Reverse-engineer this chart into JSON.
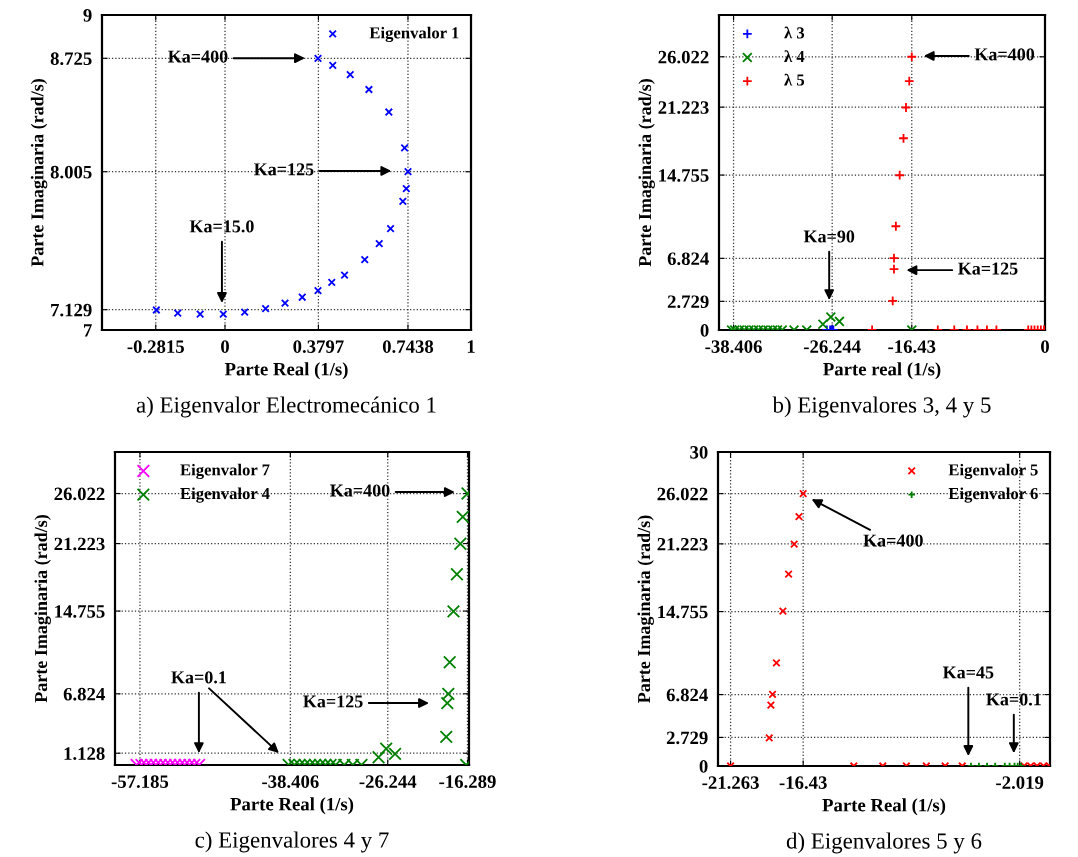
{
  "chart_data": [
    {
      "type": "scatter",
      "title": "a) Eigenvalor Electromecánico 1",
      "xlabel": "Parte Real (1/s)",
      "ylabel": "Parte Imaginaria (rad/s)",
      "xlim": [
        -0.5,
        1
      ],
      "ylim": [
        7,
        9
      ],
      "xticks": [
        -0.2815,
        0,
        0.3797,
        0.7438,
        1
      ],
      "yticks": [
        7,
        7.129,
        8.005,
        8.725,
        9
      ],
      "grid": true,
      "legend": "top right",
      "series": [
        {
          "name": "Eigenvalor 1",
          "color": "#0000ff",
          "marker": "cross",
          "x": [
            0.378,
            0.438,
            0.509,
            0.585,
            0.666,
            0.73,
            0.744,
            0.737,
            0.723,
            0.673,
            0.627,
            0.568,
            0.486,
            0.434,
            0.378,
            0.314,
            0.244,
            0.165,
            0.08,
            -0.007,
            -0.101,
            -0.192,
            -0.279
          ],
          "values": [
            8.725,
            8.68,
            8.621,
            8.527,
            8.384,
            8.157,
            8.005,
            7.898,
            7.817,
            7.644,
            7.548,
            7.447,
            7.348,
            7.302,
            7.25,
            7.208,
            7.171,
            7.136,
            7.114,
            7.101,
            7.101,
            7.107,
            7.127
          ]
        }
      ],
      "annotations": [
        "Ka=400",
        "Ka=125",
        "Ka=15.0"
      ]
    },
    {
      "type": "scatter",
      "title": "b) Eigenvalores 3, 4 y 5",
      "xlabel": "Parte real (1/s)",
      "ylabel": "Parte Imaginaria (rad/s)",
      "xlim": [
        -40.2,
        0
      ],
      "ylim": [
        0,
        30
      ],
      "xticks": [
        -38.406,
        -26.244,
        -16.43,
        0
      ],
      "yticks": [
        0,
        2.729,
        6.824,
        14.755,
        21.223,
        26.022
      ],
      "grid": true,
      "legend": "top left",
      "series": [
        {
          "name": "λ 3",
          "color": "#0000ff",
          "marker": "plus",
          "x": [
            -26.9,
            -26.5,
            -26.29,
            -26.1
          ],
          "values": [
            0,
            0,
            0,
            0
          ]
        },
        {
          "name": "λ 4",
          "color": "#008000",
          "marker": "cross",
          "x": [
            -38.65,
            -38.26,
            -37.68,
            -37.09,
            -36.5,
            -35.92,
            -35.33,
            -34.74,
            -34.16,
            -33.57,
            -32.99,
            -32.4,
            -30.95,
            -29.38,
            -27.39,
            -26.41,
            -25.35,
            -16.43
          ],
          "values": [
            0,
            0,
            0,
            0,
            0,
            0,
            0,
            0,
            0,
            0,
            0,
            0,
            0,
            0,
            0.55,
            1.24,
            0.82,
            0
          ]
        },
        {
          "name": "λ 5",
          "color": "#ff0000",
          "marker": "plus",
          "x": [
            -16.43,
            -16.74,
            -17.14,
            -17.45,
            -17.92,
            -18.39,
            -18.62,
            -18.62,
            -18.78,
            -21.32,
            -13.22,
            -11.19,
            -9.62,
            -8.33,
            -7.16,
            -5.99,
            -2.07,
            -1.68,
            -1.29,
            -0.9,
            -0.51,
            -0.12
          ],
          "values": [
            26.022,
            23.7,
            21.19,
            18.26,
            14.74,
            9.88,
            6.85,
            5.8,
            2.77,
            0,
            0,
            0,
            0,
            0,
            0,
            0,
            0,
            0,
            0,
            0,
            0,
            0
          ]
        }
      ],
      "annotations": [
        "Ka=400",
        "Ka=90",
        "Ka=125"
      ]
    },
    {
      "type": "scatter",
      "title": "c) Eigenvalores 4 y 7",
      "xlabel": "Parte Real (1/s)",
      "ylabel": "Parte Imaginaria (rad/s)",
      "xlim": [
        -60.3,
        -16.1
      ],
      "ylim": [
        0,
        30
      ],
      "xticks": [
        -57.185,
        -38.406,
        -26.244,
        -16.289
      ],
      "yticks": [
        1.128,
        6.824,
        14.755,
        21.223,
        26.022
      ],
      "grid": true,
      "legend": "top left",
      "series": [
        {
          "name": "Eigenvalor 7",
          "color": "#ff00ff",
          "marker": "cross",
          "x": [
            -57.6,
            -57.0,
            -56.4,
            -55.8,
            -55.2,
            -54.6,
            -54.0,
            -53.4,
            -52.8,
            -52.2,
            -51.6,
            -51.0,
            -50.4,
            -49.8
          ],
          "values": [
            0,
            0,
            0,
            0,
            0,
            0,
            0,
            0,
            0,
            0,
            0,
            0,
            0,
            0
          ]
        },
        {
          "name": "Eigenvalor 4",
          "color": "#008000",
          "marker": "cross",
          "x": [
            -38.62,
            -37.89,
            -37.25,
            -36.61,
            -35.96,
            -35.32,
            -34.68,
            -34.04,
            -33.39,
            -32.75,
            -31.67,
            -30.6,
            -29.53,
            -27.39,
            -26.44,
            -25.33,
            -18.94,
            -18.81,
            -18.68,
            -18.51,
            -18.04,
            -17.61,
            -17.18,
            -16.88,
            -16.289,
            -16.45
          ],
          "values": [
            0,
            0,
            0,
            0,
            0,
            0,
            0,
            0,
            0,
            0,
            0,
            0,
            0,
            0.74,
            1.56,
            1.07,
            2.7,
            5.93,
            6.82,
            9.85,
            14.72,
            18.28,
            21.21,
            23.78,
            26.022,
            0
          ]
        }
      ],
      "annotations": [
        "Ka=400",
        "Ka=125",
        "Ka=0.1"
      ]
    },
    {
      "type": "scatter",
      "title": "d) Eigenvalores 5 y 6",
      "xlabel": "Parte Real (1/s)",
      "ylabel": "Parte Imaginaria (rad/s)",
      "xlim": [
        -22.1,
        0
      ],
      "ylim": [
        0,
        30
      ],
      "xticks": [
        -21.263,
        -16.43,
        -2.019
      ],
      "yticks": [
        0,
        2.729,
        6.824,
        14.755,
        21.223,
        26.022,
        30
      ],
      "grid": true,
      "legend": "top right",
      "series": [
        {
          "name": "Eigenvalor 5",
          "color": "#ff0000",
          "marker": "cross",
          "x": [
            -16.43,
            -16.71,
            -17.03,
            -17.4,
            -17.78,
            -18.21,
            -18.47,
            -18.58,
            -18.69,
            -21.263,
            -13.06,
            -11.13,
            -9.56,
            -8.23,
            -6.98,
            -5.84,
            -1.72,
            -1.29,
            -0.86,
            -0.43,
            -0.05
          ],
          "values": [
            26.022,
            23.83,
            21.2,
            18.34,
            14.79,
            9.86,
            6.84,
            5.82,
            2.69,
            0,
            0,
            0,
            0,
            0,
            0,
            0,
            0,
            0,
            0,
            0,
            0
          ]
        },
        {
          "name": "Eigenvalor 6",
          "color": "#008000",
          "marker": "plus",
          "x": [
            -5.26,
            -4.73,
            -4.19,
            -3.65,
            -3.01,
            -2.69,
            -2.36,
            -2.15,
            -1.93
          ],
          "values": [
            0,
            0,
            0,
            0,
            0,
            0,
            0,
            0,
            0
          ]
        }
      ],
      "annotations": [
        "Ka=400",
        "Ka=45",
        "Ka=0.1"
      ]
    }
  ]
}
